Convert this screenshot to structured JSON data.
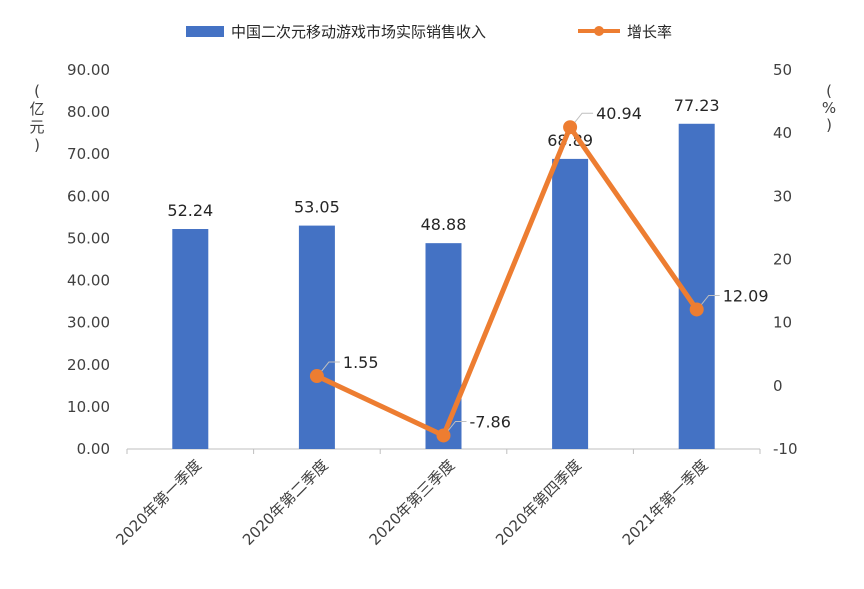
{
  "chart_data": {
    "type": "bar",
    "categories": [
      "2020年第一季度",
      "2020年第二季度",
      "2020年第三季度",
      "2020年第四季度",
      "2021年第一季度"
    ],
    "series": [
      {
        "name": "中国二次元移动游戏市场实际销售收入",
        "type": "bar",
        "axis": "left",
        "values": [
          52.24,
          53.05,
          48.88,
          68.89,
          77.23
        ],
        "labels": [
          "52.24",
          "53.05",
          "48.88",
          "68.89",
          "77.23"
        ],
        "color": "#4472C4"
      },
      {
        "name": "增长率",
        "type": "line",
        "axis": "right",
        "values": [
          null,
          1.55,
          -7.86,
          40.94,
          12.09
        ],
        "labels": [
          "",
          "1.55",
          "-7.86",
          "40.94",
          "12.09"
        ],
        "color": "#ED7D31"
      }
    ],
    "y_left": {
      "min": 0,
      "max": 90,
      "step": 10,
      "ticks": [
        "0.00",
        "10.00",
        "20.00",
        "30.00",
        "40.00",
        "50.00",
        "60.00",
        "70.00",
        "80.00",
        "90.00"
      ],
      "unit_chars": [
        "(",
        "亿",
        "元",
        ")"
      ]
    },
    "y_right": {
      "min": -10,
      "max": 50,
      "step": 10,
      "ticks": [
        "-10",
        "0",
        "10",
        "20",
        "30",
        "40",
        "50"
      ],
      "unit_chars": [
        "(",
        "%",
        ")"
      ]
    },
    "legend_position": "top",
    "grid": false
  }
}
